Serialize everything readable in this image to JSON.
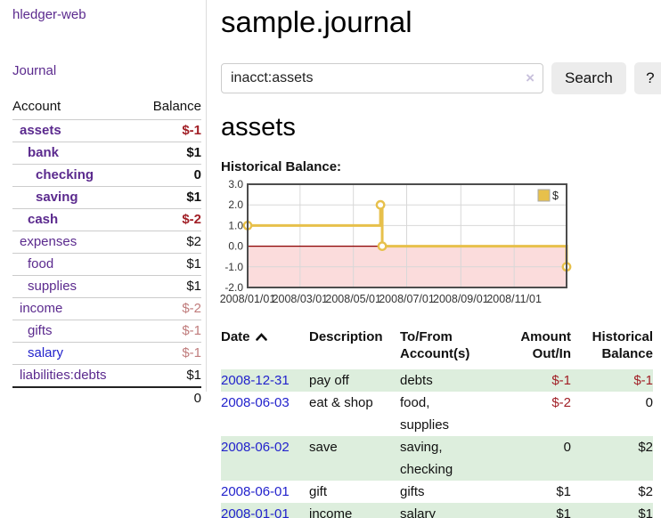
{
  "app": {
    "brand": "hledger-web"
  },
  "colors": {
    "accent_purple": "#5b2a8e",
    "link_blue": "#2222cc",
    "negative_strong": "#a11f26",
    "negative_soft": "#c07c7c",
    "row_stripe_green": "#ddeedd",
    "chart_gold": "#e7c04b"
  },
  "sidebar": {
    "journal_link": "Journal",
    "accounts": {
      "account_header": "Account",
      "balance_header": "Balance",
      "rows": [
        {
          "name": "assets",
          "indent": 0,
          "bold": true,
          "balance": "$-1",
          "balance_tone": "neg-strong",
          "link_tone": ""
        },
        {
          "name": "bank",
          "indent": 1,
          "bold": true,
          "balance": "$1",
          "balance_tone": "",
          "link_tone": ""
        },
        {
          "name": "checking",
          "indent": 2,
          "bold": true,
          "balance": "0",
          "balance_tone": "",
          "link_tone": ""
        },
        {
          "name": "saving",
          "indent": 2,
          "bold": true,
          "balance": "$1",
          "balance_tone": "",
          "link_tone": ""
        },
        {
          "name": "cash",
          "indent": 1,
          "bold": true,
          "balance": "$-2",
          "balance_tone": "neg-strong",
          "link_tone": ""
        },
        {
          "name": "expenses",
          "indent": 0,
          "bold": false,
          "balance": "$2",
          "balance_tone": "",
          "link_tone": ""
        },
        {
          "name": "food",
          "indent": 1,
          "bold": false,
          "balance": "$1",
          "balance_tone": "",
          "link_tone": ""
        },
        {
          "name": "supplies",
          "indent": 1,
          "bold": false,
          "balance": "$1",
          "balance_tone": "",
          "link_tone": ""
        },
        {
          "name": "income",
          "indent": 0,
          "bold": false,
          "balance": "$-2",
          "balance_tone": "neg-soft",
          "link_tone": ""
        },
        {
          "name": "gifts",
          "indent": 1,
          "bold": false,
          "balance": "$-1",
          "balance_tone": "neg-soft",
          "link_tone": ""
        },
        {
          "name": "salary",
          "indent": 1,
          "bold": false,
          "balance": "$-1",
          "balance_tone": "neg-soft",
          "link_tone": "blue"
        },
        {
          "name": "liabilities:debts",
          "indent": 0,
          "bold": false,
          "balance": "$1",
          "balance_tone": "",
          "link_tone": ""
        }
      ],
      "total": "0"
    }
  },
  "main": {
    "title": "sample.journal",
    "search": {
      "value": "inacct:assets",
      "clear_icon": "×",
      "button_label": "Search",
      "help_label": "?"
    },
    "account_heading": "assets"
  },
  "chart_data": {
    "type": "line",
    "step": true,
    "title": "Historical Balance:",
    "legend": {
      "position": "top-right",
      "label": "$"
    },
    "xlim": [
      "2008-01-01",
      "2008-12-31"
    ],
    "ylim": [
      -2.0,
      3.0
    ],
    "yticks": [
      3.0,
      2.0,
      1.0,
      0.0,
      -1.0,
      -2.0
    ],
    "xticks": [
      "2008/01/01",
      "2008/03/01",
      "2008/05/01",
      "2008/07/01",
      "2008/09/01",
      "2008/11/01"
    ],
    "series": [
      {
        "name": "$",
        "color": "#e7c04b",
        "points": [
          {
            "x": "2008-01-01",
            "y": 1
          },
          {
            "x": "2008-06-01",
            "y": 2
          },
          {
            "x": "2008-06-03",
            "y": 0
          },
          {
            "x": "2008-12-31",
            "y": -1
          }
        ]
      }
    ],
    "grid": true,
    "gridline_color": "#d8d8d8",
    "negative_region_fill": "#fbdcdc",
    "zero_line_color": "#8b0000",
    "border_color": "#4d4d4d",
    "tick_label_color": "#333333"
  },
  "register": {
    "headers": [
      {
        "label": "Date",
        "align": "left",
        "sorted_asc": true
      },
      {
        "label": "Description",
        "align": "left"
      },
      {
        "label": "To/From Account(s)",
        "align": "left"
      },
      {
        "label": "Amount Out/In",
        "align": "right"
      },
      {
        "label": "Historical Balance",
        "align": "right"
      }
    ],
    "rows": [
      {
        "date": "2008-12-31",
        "description": "pay off",
        "accounts": "debts",
        "amount": "$-1",
        "amount_neg": true,
        "balance": "$-1",
        "balance_neg": true
      },
      {
        "date": "2008-06-03",
        "description": "eat & shop",
        "accounts": "food, supplies",
        "amount": "$-2",
        "amount_neg": true,
        "balance": "0",
        "balance_neg": false
      },
      {
        "date": "2008-06-02",
        "description": "save",
        "accounts": "saving, checking",
        "amount": "0",
        "amount_neg": false,
        "balance": "$2",
        "balance_neg": false
      },
      {
        "date": "2008-06-01",
        "description": "gift",
        "accounts": "gifts",
        "amount": "$1",
        "amount_neg": false,
        "balance": "$2",
        "balance_neg": false
      },
      {
        "date": "2008-01-01",
        "description": "income",
        "accounts": "salary",
        "amount": "$1",
        "amount_neg": false,
        "balance": "$1",
        "balance_neg": false
      }
    ]
  }
}
